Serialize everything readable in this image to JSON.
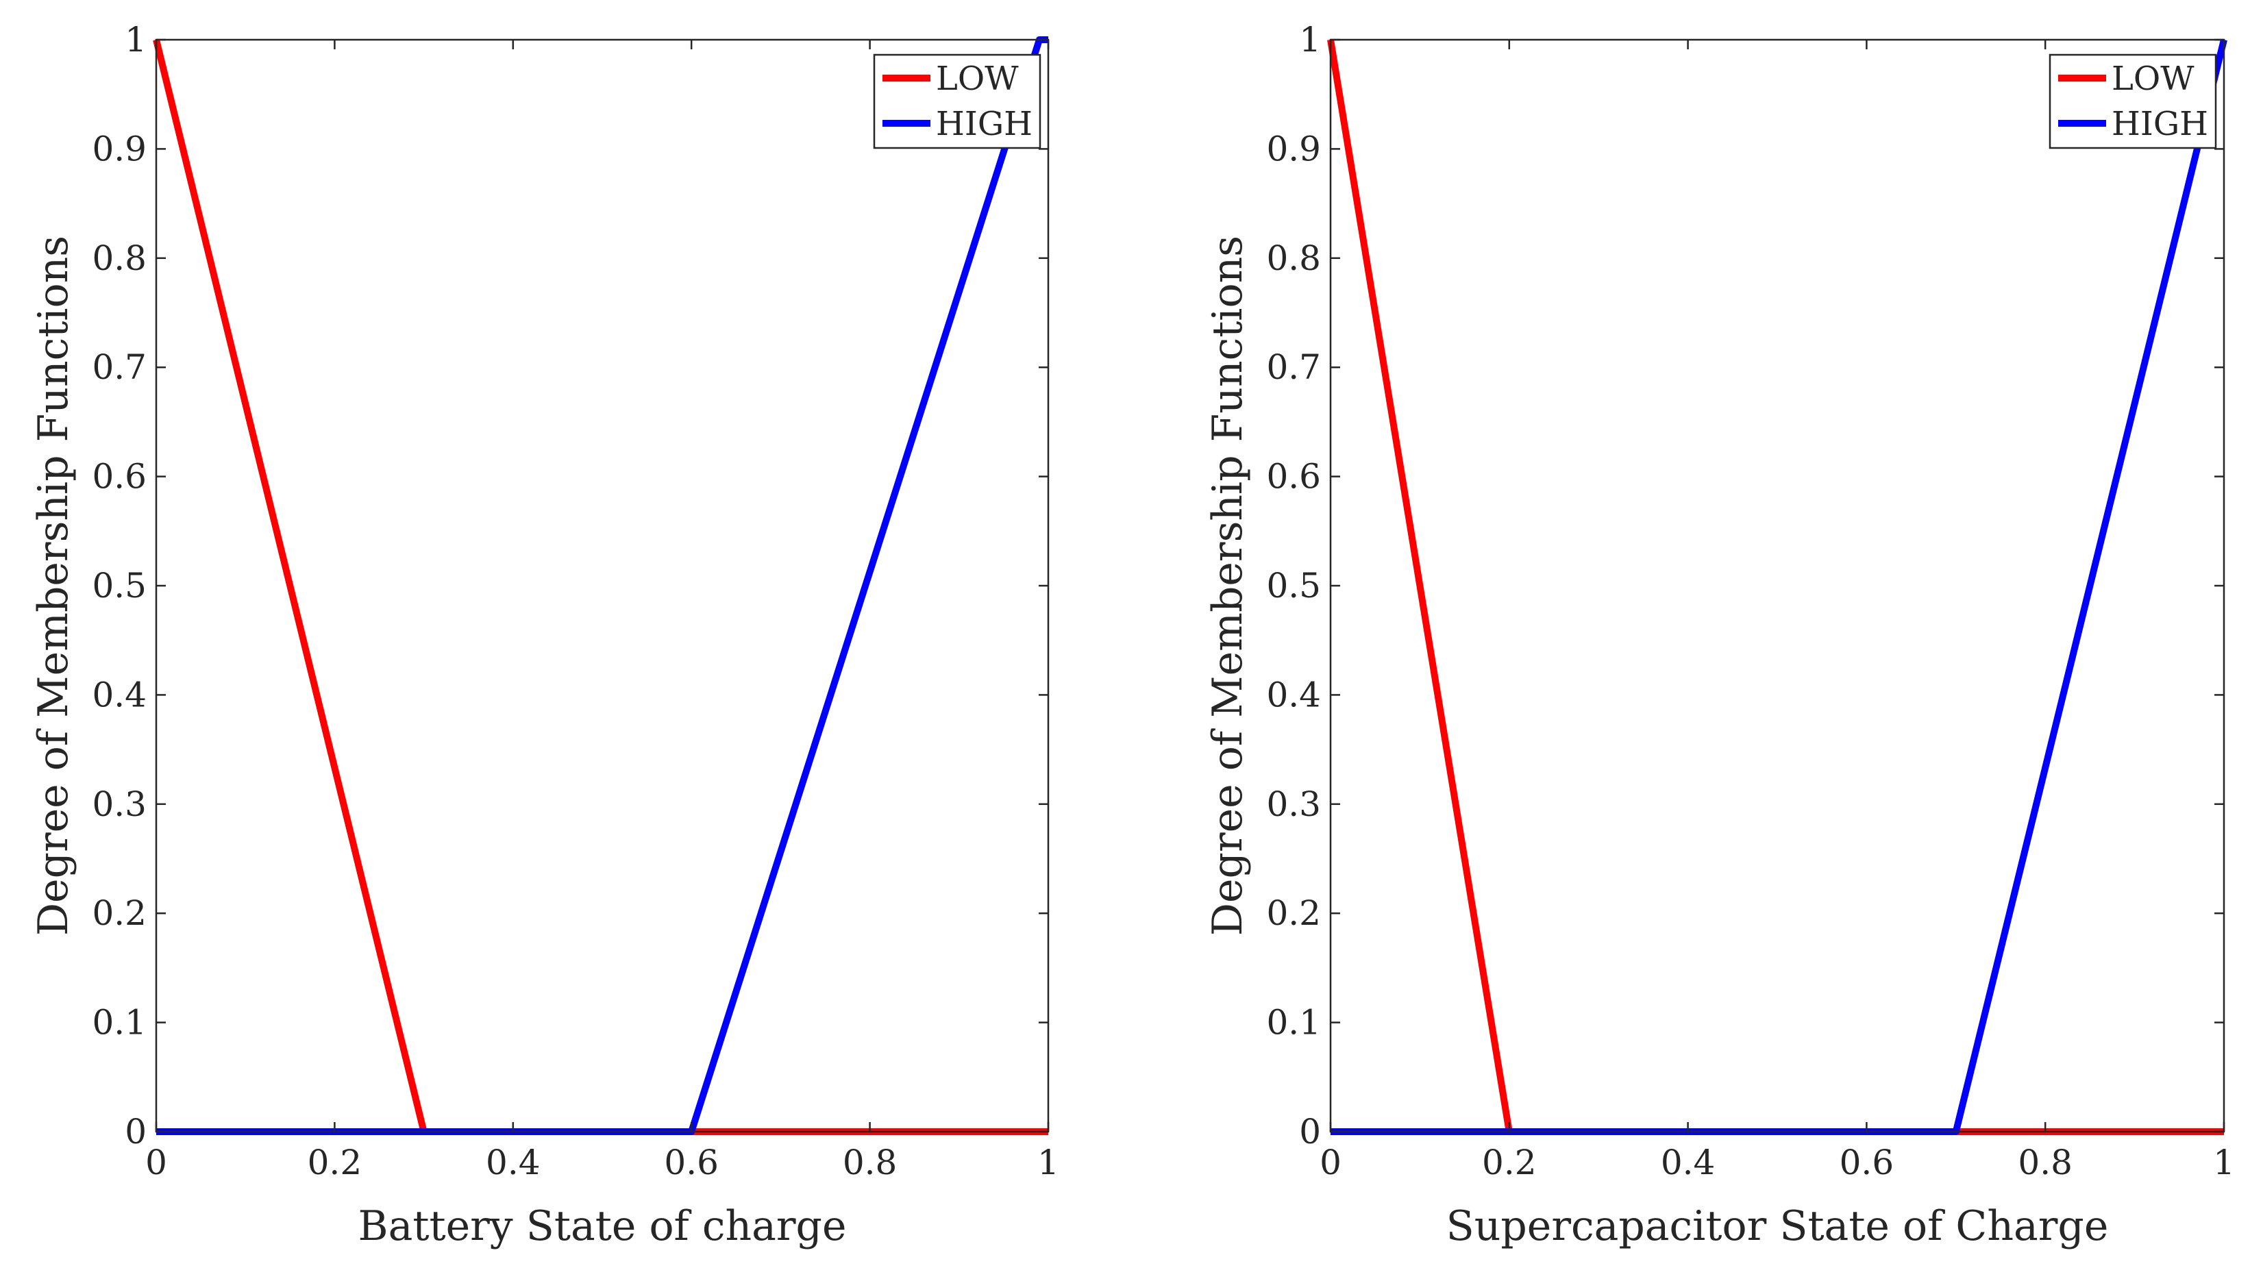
{
  "chart_data": [
    {
      "type": "line",
      "title": "",
      "xlabel": "Battery State of charge",
      "ylabel": "Degree of Membership Functions",
      "xlim": [
        0,
        1
      ],
      "ylim": [
        0,
        1
      ],
      "xticks": [
        0,
        0.2,
        0.4,
        0.6,
        0.8,
        1
      ],
      "xtick_labels": [
        "0",
        "0.2",
        "0.4",
        "0.6",
        "0.8",
        "1"
      ],
      "yticks": [
        0,
        0.1,
        0.2,
        0.3,
        0.4,
        0.5,
        0.6,
        0.7,
        0.8,
        0.9,
        1
      ],
      "ytick_labels": [
        "0",
        "0.1",
        "0.2",
        "0.3",
        "0.4",
        "0.5",
        "0.6",
        "0.7",
        "0.8",
        "0.9",
        "1"
      ],
      "grid": false,
      "legend_position": "top-right",
      "series": [
        {
          "name": "LOW",
          "color": "#ff0000",
          "x": [
            0,
            0.3,
            1
          ],
          "y": [
            1,
            0,
            0
          ]
        },
        {
          "name": "HIGH",
          "color": "#0000ff",
          "x": [
            0,
            0.6,
            0.99,
            1
          ],
          "y": [
            0,
            0,
            1,
            1
          ]
        }
      ]
    },
    {
      "type": "line",
      "title": "",
      "xlabel": "Supercapacitor State of Charge",
      "ylabel": "Degree of Membership Functions",
      "xlim": [
        0,
        1
      ],
      "ylim": [
        0,
        1
      ],
      "xticks": [
        0,
        0.2,
        0.4,
        0.6,
        0.8,
        1
      ],
      "xtick_labels": [
        "0",
        "0.2",
        "0.4",
        "0.6",
        "0.8",
        "1"
      ],
      "yticks": [
        0,
        0.1,
        0.2,
        0.3,
        0.4,
        0.5,
        0.6,
        0.7,
        0.8,
        0.9,
        1
      ],
      "ytick_labels": [
        "0",
        "0.1",
        "0.2",
        "0.3",
        "0.4",
        "0.5",
        "0.6",
        "0.7",
        "0.8",
        "0.9",
        "1"
      ],
      "grid": false,
      "legend_position": "top-right",
      "series": [
        {
          "name": "LOW",
          "color": "#ff0000",
          "x": [
            0,
            0.2,
            1
          ],
          "y": [
            1,
            0,
            0
          ]
        },
        {
          "name": "HIGH",
          "color": "#0000ff",
          "x": [
            0,
            0.7,
            1
          ],
          "y": [
            0,
            0,
            1
          ]
        }
      ]
    }
  ]
}
